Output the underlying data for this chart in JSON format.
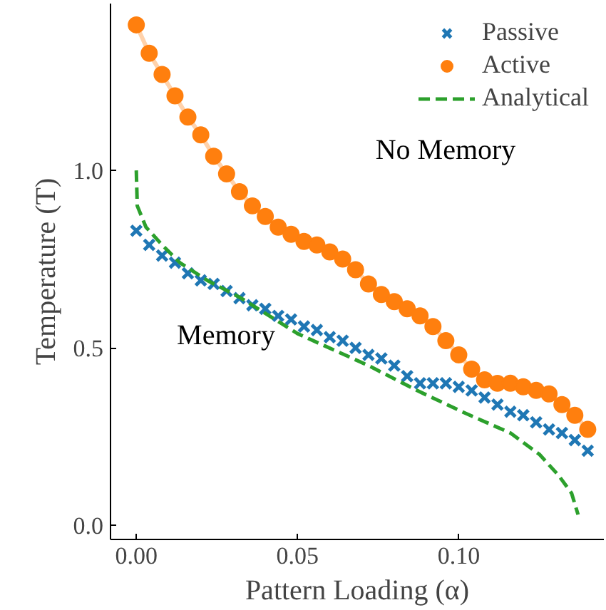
{
  "chart_data": {
    "type": "line",
    "xlabel": "Pattern Loading (α)",
    "ylabel": "Temperature (T)",
    "xlim": [
      -0.008,
      0.145
    ],
    "ylim": [
      -0.04,
      1.47
    ],
    "xticks": [
      {
        "value": 0,
        "label": "0.00"
      },
      0.05,
      {
        "value": 0.1,
        "label": "0.10"
      }
    ],
    "yticks": [
      {
        "value": 0,
        "label": "0.0"
      },
      0.5,
      {
        "value": 1,
        "label": "1.0"
      }
    ],
    "grid": false,
    "legend": "top right",
    "x": [
      0,
      0.004,
      0.008,
      0.012,
      0.016,
      0.02,
      0.024,
      0.028,
      0.032,
      0.036,
      0.04,
      0.044,
      0.048,
      0.052,
      0.056,
      0.06,
      0.064,
      0.068,
      0.072,
      0.076,
      0.08,
      0.084,
      0.088,
      0.092,
      0.096,
      0.1,
      0.104,
      0.108,
      0.112,
      0.116,
      0.12,
      0.124,
      0.128,
      0.132,
      0.136,
      0.14
    ],
    "series": [
      {
        "name": "Passive",
        "type": "scatter",
        "marker": "cross",
        "color": "#1f77b4",
        "values": [
          0.83,
          0.79,
          0.76,
          0.74,
          0.71,
          0.69,
          0.68,
          0.66,
          0.64,
          0.62,
          0.61,
          0.59,
          0.58,
          0.56,
          0.55,
          0.53,
          0.52,
          0.5,
          0.48,
          0.47,
          0.45,
          0.42,
          0.4,
          0.4,
          0.4,
          0.39,
          0.38,
          0.36,
          0.34,
          0.32,
          0.31,
          0.29,
          0.27,
          0.26,
          0.24,
          0.21
        ]
      },
      {
        "name": "Active",
        "marker": "circle",
        "color": "#ff7f0e",
        "values": [
          1.41,
          1.33,
          1.27,
          1.21,
          1.15,
          1.1,
          1.04,
          0.99,
          0.94,
          0.9,
          0.87,
          0.84,
          0.82,
          0.8,
          0.79,
          0.77,
          0.75,
          0.72,
          0.68,
          0.65,
          0.63,
          0.61,
          0.59,
          0.56,
          0.52,
          0.48,
          0.44,
          0.41,
          0.4,
          0.4,
          0.39,
          0.38,
          0.37,
          0.34,
          0.31,
          0.27
        ]
      },
      {
        "name": "Analytical",
        "type": "line",
        "marker": "none",
        "line_style": "dashed",
        "color": "#2ca02c",
        "x": [
          0,
          0.0003,
          0.003,
          0.008,
          0.0135,
          0.022,
          0.0325,
          0.05,
          0.072,
          0.087,
          0.101,
          0.116,
          0.125,
          0.131,
          0.135,
          0.137
        ],
        "values": [
          1.0,
          0.9,
          0.84,
          0.79,
          0.74,
          0.69,
          0.64,
          0.54,
          0.45,
          0.38,
          0.32,
          0.26,
          0.2,
          0.14,
          0.09,
          0.03
        ]
      }
    ],
    "annotations": [
      "No Memory",
      "Memory"
    ]
  }
}
